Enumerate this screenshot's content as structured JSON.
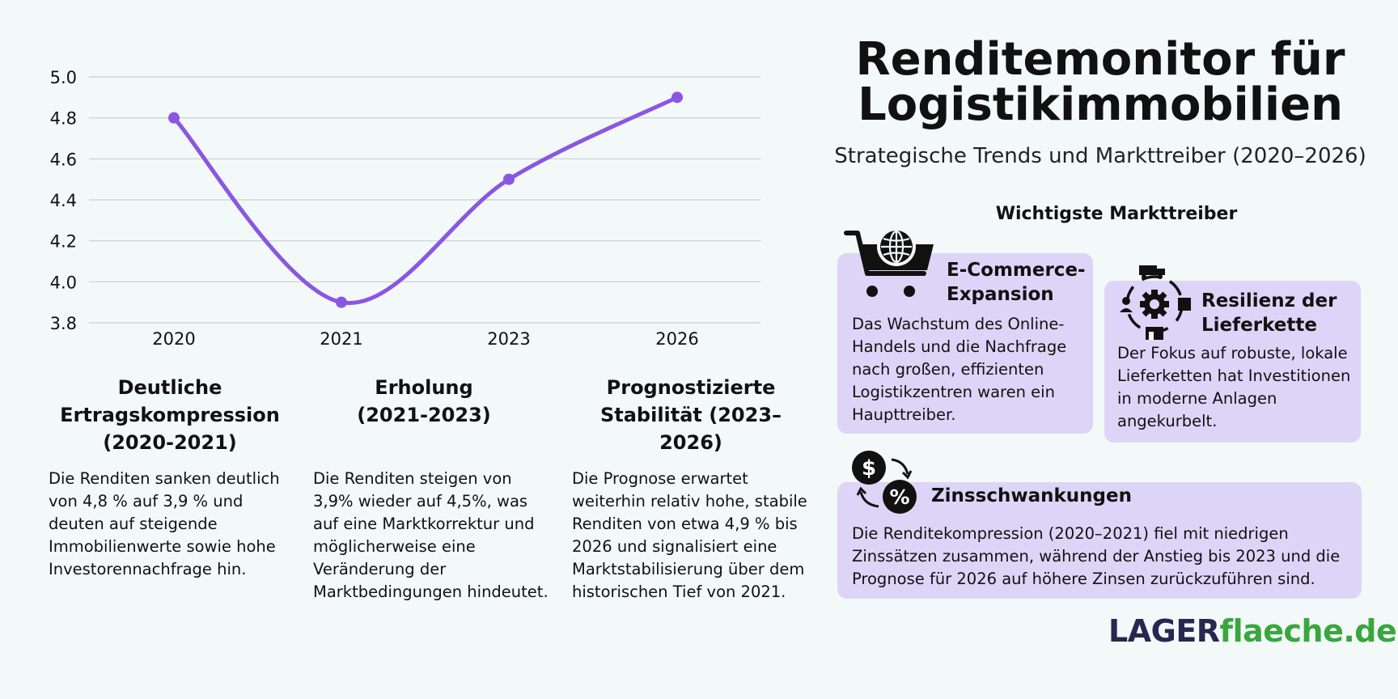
{
  "chart_data": {
    "type": "line",
    "categories": [
      "2020",
      "2021",
      "2023",
      "2026"
    ],
    "series": [
      {
        "values": [
          4.8,
          3.9,
          4.5,
          4.9
        ],
        "color": "#8a56e2"
      }
    ],
    "yticks": [
      "5.0",
      "4.8",
      "4.6",
      "4.4",
      "4.2",
      "4.0",
      "3.8"
    ],
    "ylim": [
      3.8,
      5.0
    ],
    "grid": true,
    "title": "",
    "xlabel": "",
    "ylabel": ""
  },
  "phases": [
    {
      "title": "Deutliche\nErtragskompression\n(2020-2021)",
      "text": "Die Renditen sanken deutlich von 4,8 % auf 3,9 % und deuten auf steigende Immobilienwerte sowie hohe Investorennachfrage hin."
    },
    {
      "title": "Erholung\n(2021-2023)",
      "text": "Die Renditen steigen von 3,9% wieder auf 4,5%, was auf eine Marktkorrektur und möglicherweise eine Veränderung der Marktbedingungen hindeutet."
    },
    {
      "title": "Prognostizierte\nStabilität (2023–2026)",
      "text": "Die Prognose erwartet weiterhin relativ hohe, stabile Renditen von etwa 4,9 % bis 2026 und signalisiert eine Marktstabilisierung über dem historischen Tief von 2021."
    }
  ],
  "header": {
    "title_line1": "Renditemonitor für",
    "title_line2": "Logistikimmobilien",
    "subtitle": "Strategische Trends und Markttreiber (2020–2026)"
  },
  "drivers": {
    "heading": "Wichtigste Markttreiber",
    "items": [
      {
        "title": "E-Commerce-\nExpansion",
        "text": "Das Wachstum des Online-Handels und die Nachfrage nach großen, effizienten Logistikzentren waren ein Haupttreiber.",
        "icon": "cart-globe-icon"
      },
      {
        "title": "Resilienz der\nLieferkette",
        "text": "Der Fokus auf robuste, lokale Lieferketten hat Investitionen in moderne Anlagen angekurbelt.",
        "icon": "supply-chain-gear-icon"
      },
      {
        "title": "Zinsschwankungen",
        "text": "Die Renditekompression (2020–2021) fiel mit niedrigen Zinssätzen zusammen, während der Anstieg bis 2023 und die Prognose für 2026 auf höhere Zinsen zurückzuführen sind.",
        "icon": "dollar-percent-exchange-icon"
      }
    ]
  },
  "brand": {
    "part1": "LAGER",
    "part2": "flaeche.de"
  },
  "colors": {
    "background": "#f3f8f8",
    "card": "#ddd5f7",
    "line": "#8a56e2",
    "brand_dark": "#26284f",
    "brand_green": "#3aa63e"
  }
}
